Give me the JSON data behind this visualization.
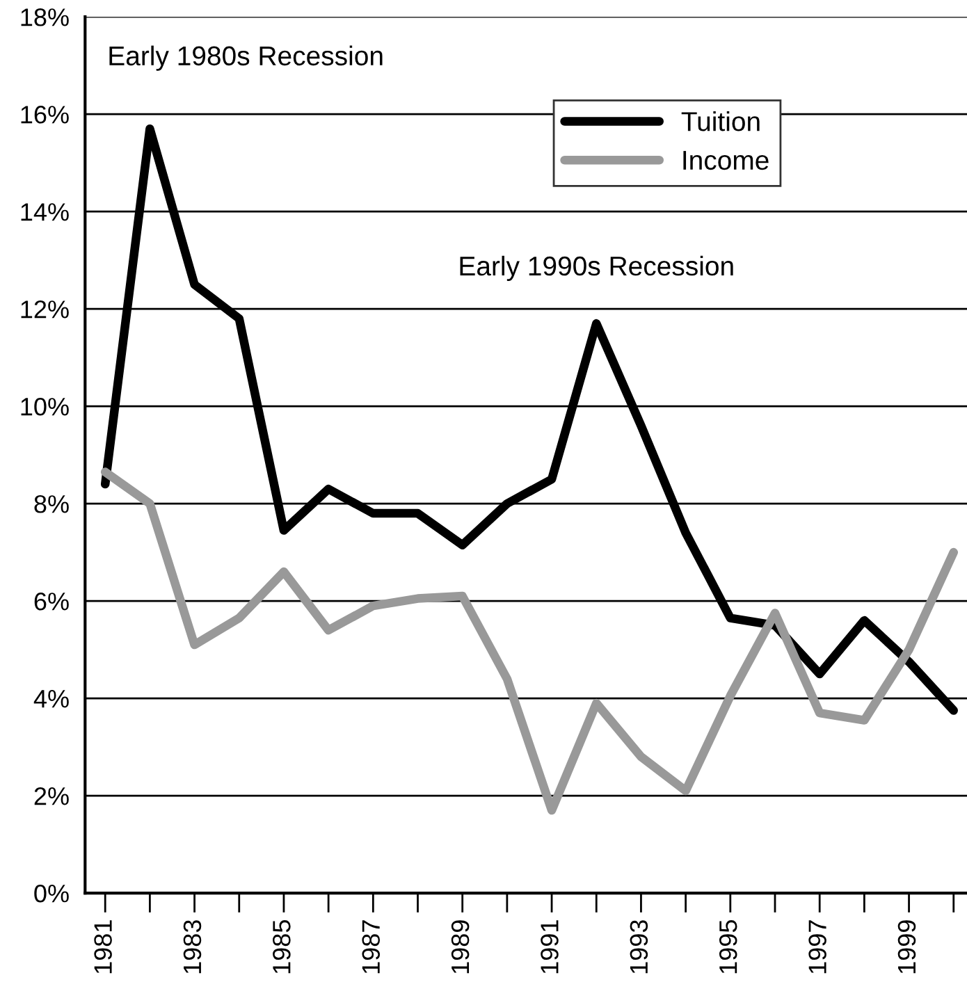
{
  "chart_data": {
    "type": "line",
    "x": [
      1981,
      1982,
      1983,
      1984,
      1985,
      1986,
      1987,
      1988,
      1989,
      1990,
      1991,
      1992,
      1993,
      1994,
      1995,
      1996,
      1997,
      1998,
      1999,
      2000
    ],
    "series": [
      {
        "name": "Tuition",
        "color": "#000000",
        "values": [
          8.4,
          15.7,
          12.5,
          11.8,
          7.45,
          8.3,
          7.8,
          7.8,
          7.15,
          8.0,
          8.5,
          11.7,
          9.6,
          7.4,
          5.65,
          5.5,
          4.5,
          5.6,
          4.75,
          3.75
        ]
      },
      {
        "name": "Income",
        "color": "#999999",
        "values": [
          8.65,
          8.0,
          5.1,
          5.65,
          6.6,
          5.4,
          5.9,
          6.05,
          6.1,
          4.4,
          1.7,
          3.9,
          2.8,
          2.1,
          4.05,
          5.75,
          3.7,
          3.55,
          5.0,
          7.0
        ]
      }
    ],
    "xlim": [
      1980.55,
      2000.3
    ],
    "xticks": [
      1981,
      {
        "value": 1982,
        "label": null
      },
      1983,
      {
        "value": 1984,
        "label": null
      },
      1985,
      {
        "value": 1986,
        "label": null
      },
      1987,
      {
        "value": 1988,
        "label": null
      },
      1989,
      {
        "value": 1990,
        "label": null
      },
      1991,
      {
        "value": 1992,
        "label": null
      },
      1993,
      {
        "value": 1994,
        "label": null
      },
      1995,
      {
        "value": 1996,
        "label": null
      },
      1997,
      {
        "value": 1998,
        "label": null
      },
      1999,
      {
        "value": 2000,
        "label": null
      }
    ],
    "ylim": [
      0,
      18
    ],
    "yticks": [
      {
        "value": 0,
        "label": "0%"
      },
      {
        "value": 2,
        "label": "2%"
      },
      {
        "value": 4,
        "label": "4%"
      },
      {
        "value": 6,
        "label": "6%"
      },
      {
        "value": 8,
        "label": "8%"
      },
      {
        "value": 10,
        "label": "10%"
      },
      {
        "value": 12,
        "label": "12%"
      },
      {
        "value": 14,
        "label": "14%"
      },
      {
        "value": 16,
        "label": "16%"
      },
      {
        "value": 18,
        "label": "18%"
      }
    ],
    "grid": "y",
    "legend": "top",
    "line_style": "solid",
    "marker": "none",
    "annotations": [
      {
        "text": "Early 1980s Recession",
        "x": 1982,
        "y": 15.7
      },
      {
        "text": "Early 1990s Recession",
        "x": 1992,
        "y": 11.7
      }
    ]
  }
}
